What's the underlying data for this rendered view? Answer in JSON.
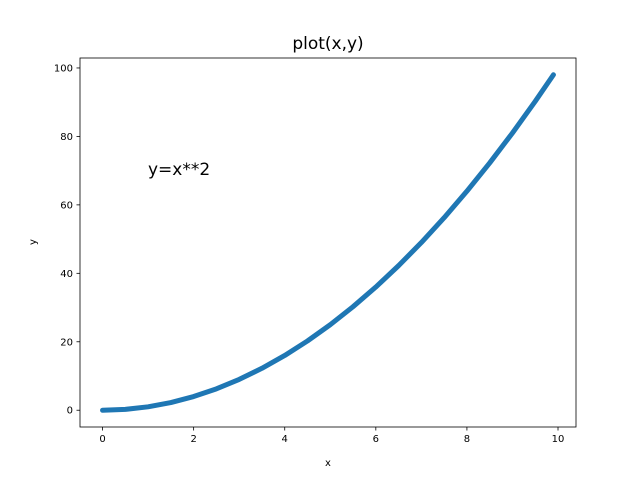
{
  "chart_data": {
    "type": "line",
    "title": "plot(x,y)",
    "xlabel": "x",
    "ylabel": "y",
    "xlim": [
      -0.495,
      10.395
    ],
    "ylim": [
      -4.9005,
      102.9105
    ],
    "xticks": [
      0,
      2,
      4,
      6,
      8,
      10
    ],
    "yticks": [
      0,
      20,
      40,
      60,
      80,
      100
    ],
    "grid": false,
    "legend": "none",
    "series": [
      {
        "color": "#1f77b4",
        "x": [
          0,
          0.5,
          1,
          1.5,
          2,
          2.5,
          3,
          3.5,
          4,
          4.5,
          5,
          5.5,
          6,
          6.5,
          7,
          7.5,
          8,
          8.5,
          9,
          9.5,
          9.9
        ],
        "y": [
          0,
          0.25,
          1,
          2.25,
          4,
          6.25,
          9,
          12.25,
          16,
          20.25,
          25,
          30.25,
          36,
          42.25,
          49,
          56.25,
          64,
          72.25,
          81,
          90.25,
          98.01
        ]
      }
    ],
    "annotations": [
      {
        "text": "y=x**2",
        "x": 1,
        "y": 68
      }
    ]
  }
}
